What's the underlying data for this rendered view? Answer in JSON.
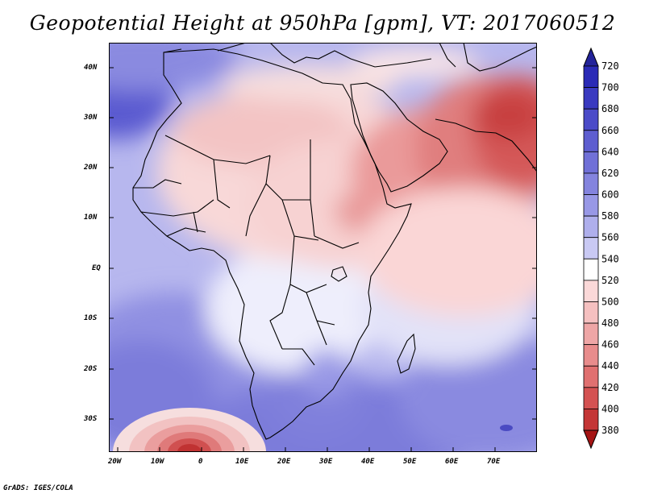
{
  "title": "Geopotential Height at 950hPa [gpm], VT: 2017060512",
  "footer": "GrADS: IGES/COLA",
  "map": {
    "lat_labels": [
      "40N",
      "30N",
      "20N",
      "10N",
      "EQ",
      "10S",
      "20S",
      "30S"
    ],
    "lon_labels": [
      "20W",
      "10W",
      "0",
      "10E",
      "20E",
      "30E",
      "40E",
      "50E",
      "60E",
      "70E"
    ]
  },
  "colorbar": {
    "levels": [
      "720",
      "700",
      "680",
      "660",
      "640",
      "620",
      "600",
      "580",
      "560",
      "540",
      "520",
      "500",
      "480",
      "460",
      "440",
      "420",
      "400",
      "380"
    ],
    "colors": [
      "#2a2ab6",
      "#3a3ac0",
      "#4b4bc8",
      "#5e5ed0",
      "#7070d7",
      "#8484de",
      "#9898e6",
      "#afafec",
      "#c9c9f3",
      "#ffffff",
      "#fbd8d8",
      "#f5c0c0",
      "#eea6a6",
      "#e88c8c",
      "#e07070",
      "#d45252",
      "#c43636",
      "#b41e1e"
    ],
    "top_triangle": "#23239a",
    "bottom_triangle": "#a51414"
  }
}
